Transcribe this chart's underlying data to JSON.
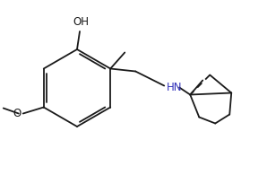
{
  "background_color": "#ffffff",
  "line_color": "#1a1a1a",
  "text_color": "#1a1a1a",
  "hn_color": "#3333bb",
  "oh_label": "OH",
  "hn_label": "HN",
  "figsize": [
    2.98,
    1.95
  ],
  "dpi": 100
}
